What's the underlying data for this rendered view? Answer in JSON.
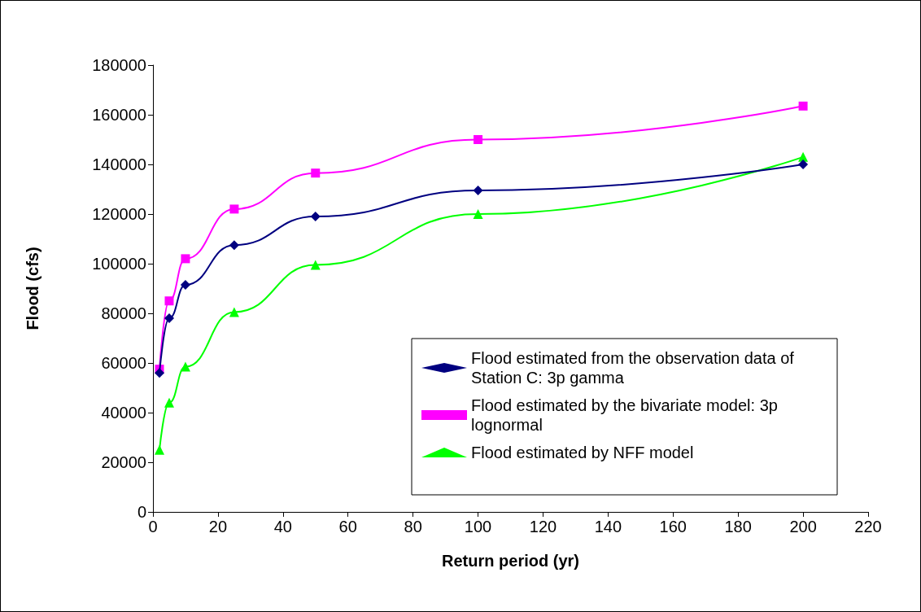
{
  "chart_data": {
    "type": "line",
    "xlabel": "Return period (yr)",
    "ylabel": "Flood (cfs)",
    "x": [
      2,
      5,
      10,
      25,
      50,
      100,
      200
    ],
    "series": [
      {
        "name": "Flood estimated from the observation data of Station C: 3p gamma",
        "color": "#000080",
        "marker": "diamond",
        "values": [
          56000,
          78000,
          91500,
          107500,
          119000,
          129500,
          140000
        ]
      },
      {
        "name": "Flood estimated by the bivariate model: 3p lognormal",
        "color": "#ff00ff",
        "marker": "square",
        "values": [
          57500,
          85000,
          102000,
          122000,
          136500,
          150000,
          163500
        ]
      },
      {
        "name": "Flood estimated by NFF model",
        "color": "#00ff00",
        "marker": "triangle",
        "values": [
          25000,
          44000,
          58500,
          80500,
          99500,
          120000,
          143000
        ]
      }
    ],
    "xlim": [
      0,
      220
    ],
    "xticks": [
      0,
      20,
      40,
      60,
      80,
      100,
      120,
      140,
      160,
      180,
      200,
      220
    ],
    "ylim": [
      0,
      180000
    ],
    "yticks": [
      0,
      20000,
      40000,
      60000,
      80000,
      100000,
      120000,
      140000,
      160000,
      180000
    ],
    "grid": false,
    "legend": "bottom right",
    "line_style": "solid"
  }
}
